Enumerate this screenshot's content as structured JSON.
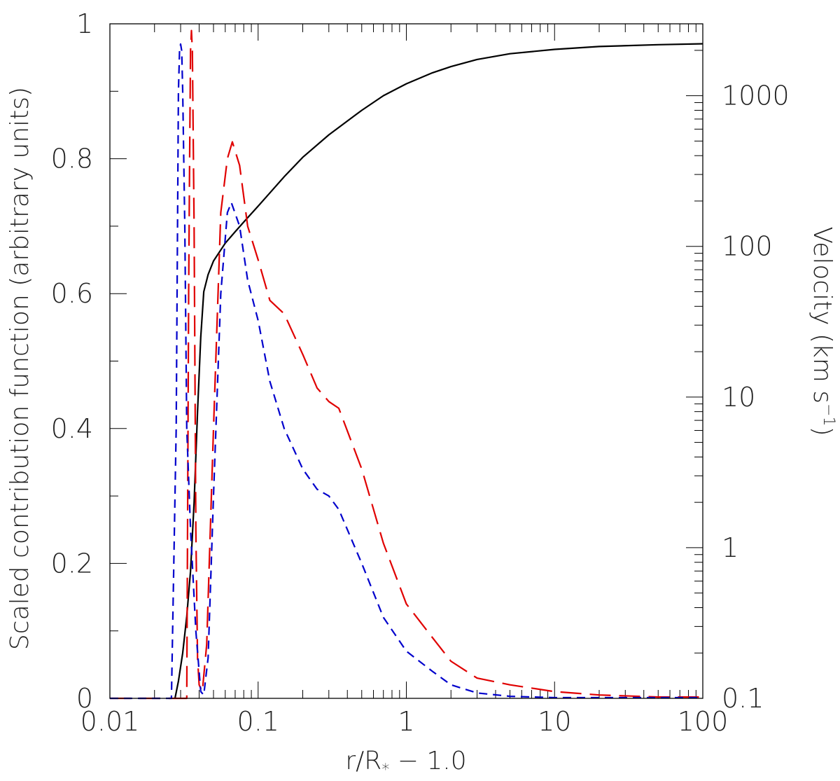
{
  "chart_data": {
    "type": "line",
    "title": "",
    "xlabel": "r/R",
    "xlabel_sub": "*",
    "xlabel_suffix": " − 1.0",
    "ylabel": "Scaled contribution function (arbitrary units)",
    "ylabel_right": "Velocity (km s",
    "ylabel_right_sup": "−1",
    "ylabel_right_close": ")",
    "xscale": "log",
    "xlim": [
      0.01,
      100
    ],
    "ylim": [
      0,
      1
    ],
    "ylim_right": [
      0.1,
      3000
    ],
    "yscale_right": "log",
    "x_tick_labels": [
      "0.01",
      "0.1",
      "1",
      "10",
      "100"
    ],
    "y_tick_labels": [
      "0",
      "0.2",
      "0.4",
      "0.6",
      "0.8",
      "1"
    ],
    "y_right_tick_labels": [
      "0.1",
      "1",
      "10",
      "100",
      "1000"
    ],
    "series": [
      {
        "name": "Velocity (solid, right axis)",
        "axis": "right",
        "color": "#000000",
        "dash": "",
        "x": [
          0.0275,
          0.029,
          0.031,
          0.033,
          0.035,
          0.037,
          0.039,
          0.041,
          0.043,
          0.046,
          0.05,
          0.06,
          0.07,
          0.08,
          0.1,
          0.15,
          0.2,
          0.3,
          0.5,
          0.7,
          1.0,
          1.5,
          2,
          3,
          5,
          10,
          20,
          50,
          100
        ],
        "values": [
          0.1,
          0.13,
          0.2,
          0.35,
          0.7,
          2,
          8,
          25,
          50,
          65,
          80,
          105,
          125,
          145,
          185,
          290,
          390,
          550,
          800,
          1000,
          1200,
          1420,
          1560,
          1740,
          1900,
          2030,
          2120,
          2180,
          2210
        ]
      },
      {
        "name": "Contribution function (long-dashed, red)",
        "axis": "left",
        "color": "#e00000",
        "dash": "30,12",
        "x": [
          0.01,
          0.03,
          0.033,
          0.034,
          0.0345,
          0.035,
          0.0355,
          0.036,
          0.037,
          0.038,
          0.039,
          0.04,
          0.042,
          0.045,
          0.05,
          0.056,
          0.062,
          0.067,
          0.075,
          0.085,
          0.1,
          0.12,
          0.15,
          0.2,
          0.25,
          0.3,
          0.35,
          0.5,
          0.7,
          1.0,
          1.5,
          2,
          3,
          5,
          10,
          20,
          50,
          100
        ],
        "values": [
          0,
          0,
          0,
          0.6,
          0.8,
          0.96,
          0.99,
          0.96,
          0.7,
          0.25,
          0.06,
          0.02,
          0.01,
          0.08,
          0.4,
          0.72,
          0.8,
          0.825,
          0.79,
          0.7,
          0.65,
          0.59,
          0.57,
          0.51,
          0.46,
          0.44,
          0.43,
          0.34,
          0.23,
          0.14,
          0.09,
          0.055,
          0.03,
          0.02,
          0.01,
          0.005,
          0.002,
          0.002
        ]
      },
      {
        "name": "Contribution function (short-dashed, blue)",
        "axis": "left",
        "color": "#0000cc",
        "dash": "12,8",
        "x": [
          0.01,
          0.026,
          0.028,
          0.029,
          0.0295,
          0.03,
          0.0305,
          0.031,
          0.032,
          0.033,
          0.035,
          0.038,
          0.041,
          0.043,
          0.046,
          0.05,
          0.056,
          0.062,
          0.066,
          0.075,
          0.085,
          0.1,
          0.12,
          0.15,
          0.2,
          0.25,
          0.3,
          0.35,
          0.5,
          0.7,
          1.0,
          1.5,
          2,
          3,
          5,
          10,
          20,
          50,
          100
        ],
        "values": [
          0,
          0,
          0.4,
          0.9,
          0.96,
          0.97,
          0.96,
          0.9,
          0.7,
          0.4,
          0.25,
          0.1,
          0.01,
          0.005,
          0.06,
          0.3,
          0.6,
          0.72,
          0.735,
          0.7,
          0.62,
          0.56,
          0.47,
          0.4,
          0.34,
          0.31,
          0.3,
          0.28,
          0.2,
          0.12,
          0.07,
          0.04,
          0.02,
          0.008,
          0.003,
          0.001,
          0.001,
          0.001,
          0.001
        ]
      }
    ]
  }
}
